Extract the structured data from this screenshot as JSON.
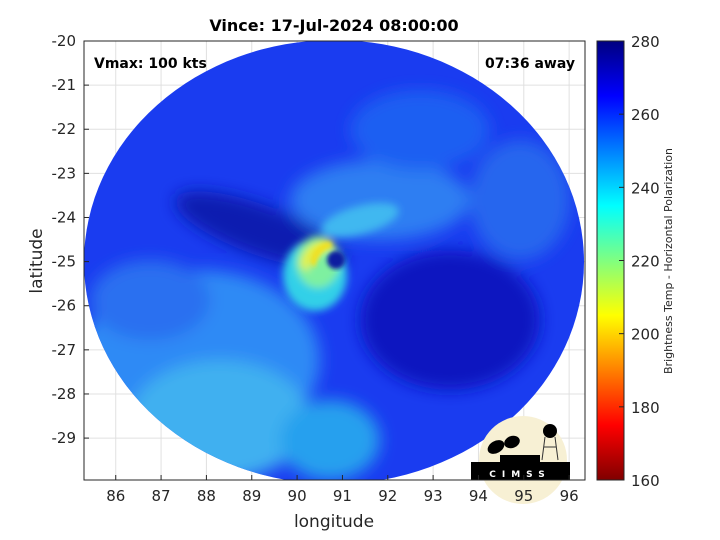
{
  "chart_data": {
    "type": "heatmap",
    "title": "Vince: 17-Jul-2024 08:00:00",
    "xlabel": "longitude",
    "ylabel": "latitude",
    "xlim": [
      85.3,
      96.35
    ],
    "ylim": [
      -29.95,
      -20
    ],
    "xticks": [
      "86",
      "87",
      "88",
      "89",
      "90",
      "91",
      "92",
      "93",
      "94",
      "95",
      "96"
    ],
    "yticks": [
      "-20",
      "-21",
      "-22",
      "-23",
      "-24",
      "-25",
      "-26",
      "-27",
      "-28",
      "-29"
    ],
    "grid": true,
    "colormap": "jet",
    "colorbar": {
      "label": "Brightness Temp - Horizontal Polarization",
      "range": [
        160,
        280
      ],
      "ticks": [
        "280",
        "260",
        "240",
        "220",
        "200",
        "180",
        "160"
      ],
      "placement": "right"
    },
    "storm_center": {
      "lon": 90.8,
      "lat": -24.9
    },
    "annotations": {
      "vmax": "Vmax: 100 kts",
      "time_offset": "07:36 away"
    }
  },
  "logo": {
    "text": "CIMSS"
  }
}
